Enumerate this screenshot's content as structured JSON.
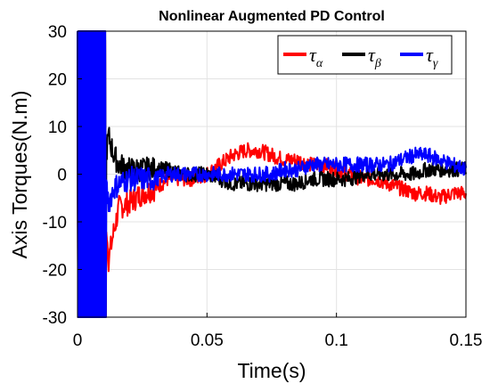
{
  "chart_data": {
    "type": "line",
    "title": "Nonlinear Augmented PD Control",
    "xlabel": "Time(s)",
    "ylabel": "Axis Torques(N.m)",
    "xlim": [
      0,
      0.15
    ],
    "ylim": [
      -30,
      30
    ],
    "x_ticks": [
      0,
      0.05,
      0.1,
      0.15
    ],
    "x_tick_labels": [
      "0",
      "0.05",
      "0.1",
      "0.15"
    ],
    "y_ticks": [
      -30,
      -20,
      -10,
      0,
      10,
      20,
      30
    ],
    "y_tick_labels": [
      "-30",
      "-20",
      "-10",
      "0",
      "10",
      "20",
      "30"
    ],
    "grid": true,
    "legend_position": "top-right",
    "series": [
      {
        "symbol": "τ",
        "subscript": "α",
        "color": "#ff0000",
        "x": [
          0,
          0.005,
          0.01,
          0.012,
          0.014,
          0.016,
          0.02,
          0.025,
          0.03,
          0.035,
          0.04,
          0.045,
          0.05,
          0.055,
          0.06,
          0.065,
          0.07,
          0.075,
          0.08,
          0.085,
          0.09,
          0.095,
          0.1,
          0.105,
          0.11,
          0.115,
          0.12,
          0.125,
          0.13,
          0.135,
          0.14,
          0.145,
          0.15
        ],
        "y": [
          0,
          0,
          0,
          -18,
          -12,
          -7,
          -6,
          -4,
          -3,
          -1,
          -1,
          -1,
          0,
          2,
          4,
          5,
          5,
          4,
          3,
          3,
          2,
          2,
          1,
          0,
          -1,
          -1,
          -2,
          -3,
          -4,
          -4,
          -5,
          -4,
          -4
        ]
      },
      {
        "symbol": "τ",
        "subscript": "β",
        "color": "#000000",
        "x": [
          0,
          0.005,
          0.01,
          0.012,
          0.014,
          0.016,
          0.02,
          0.025,
          0.03,
          0.035,
          0.04,
          0.045,
          0.05,
          0.055,
          0.06,
          0.065,
          0.07,
          0.075,
          0.08,
          0.085,
          0.09,
          0.095,
          0.1,
          0.105,
          0.11,
          0.115,
          0.12,
          0.125,
          0.13,
          0.135,
          0.14,
          0.145,
          0.15
        ],
        "y": [
          0,
          0,
          0,
          8,
          4,
          2,
          1,
          1,
          1,
          1,
          0,
          0,
          0,
          -1,
          -2,
          -2,
          -2,
          -2,
          -2,
          -2,
          -1,
          -1,
          -1,
          -1,
          0,
          0,
          0,
          0,
          0,
          1,
          1,
          1,
          1
        ]
      },
      {
        "symbol": "τ",
        "subscript": "γ",
        "color": "#0000ff",
        "x": [
          0,
          0.005,
          0.01,
          0.012,
          0.014,
          0.016,
          0.02,
          0.025,
          0.03,
          0.035,
          0.04,
          0.045,
          0.05,
          0.055,
          0.06,
          0.065,
          0.07,
          0.075,
          0.08,
          0.085,
          0.09,
          0.095,
          0.1,
          0.105,
          0.11,
          0.115,
          0.12,
          0.125,
          0.13,
          0.135,
          0.14,
          0.145,
          0.15
        ],
        "y": [
          0,
          0,
          0,
          -6,
          -3,
          -2,
          -1,
          -1,
          -1,
          0,
          0,
          0,
          0,
          0,
          0,
          0,
          0,
          0,
          1,
          1,
          2,
          2,
          2,
          2,
          2,
          2,
          2,
          3,
          4,
          4,
          3,
          2,
          1
        ]
      }
    ]
  }
}
